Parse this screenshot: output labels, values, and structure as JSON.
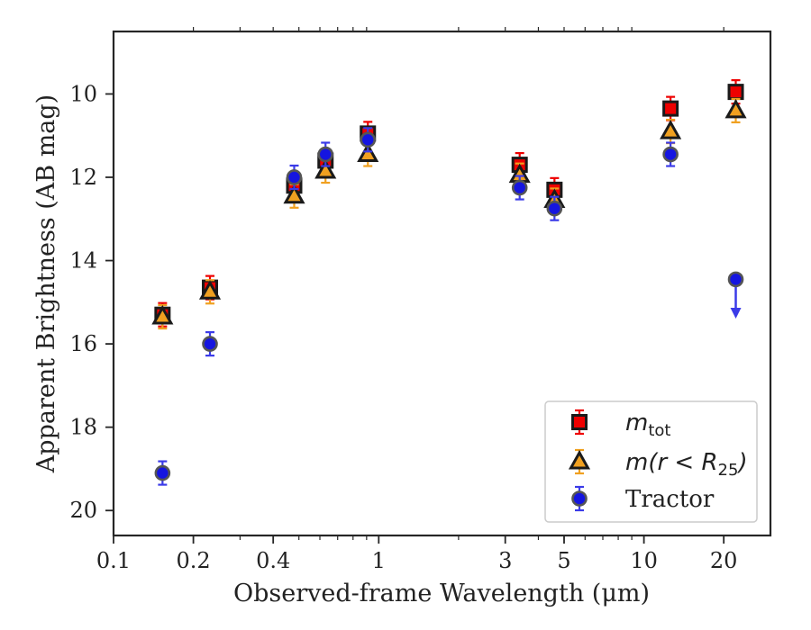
{
  "chart_data": {
    "type": "scatter",
    "title": "",
    "xlabel": "Observed-frame Wavelength (μm)",
    "ylabel": "Apparent Brightness (AB mag)",
    "xscale": "log",
    "xlim": [
      0.1,
      30
    ],
    "ylim": [
      20.6,
      8.5
    ],
    "y_inverted": true,
    "x_ticks": [
      0.1,
      0.2,
      0.4,
      1,
      3,
      5,
      10,
      20
    ],
    "x_tick_labels": [
      "0.1",
      "0.2",
      "0.4",
      "1",
      "3",
      "5",
      "10",
      "20"
    ],
    "y_ticks": [
      10,
      12,
      14,
      16,
      18,
      20
    ],
    "y_tick_labels": [
      "10",
      "12",
      "14",
      "16",
      "18",
      "20"
    ],
    "grid": false,
    "legend_position": "bottom-right",
    "series": [
      {
        "key": "mtot",
        "legend_main": "m",
        "legend_sub": "tot",
        "legend_rest": "",
        "marker": "square",
        "color": "#ee0000",
        "edge": "#1a1a1a",
        "points": [
          {
            "x": 0.153,
            "y": 15.3
          },
          {
            "x": 0.231,
            "y": 14.65
          },
          {
            "x": 0.48,
            "y": 12.2
          },
          {
            "x": 0.63,
            "y": 11.6
          },
          {
            "x": 0.91,
            "y": 10.95
          },
          {
            "x": 3.4,
            "y": 11.7
          },
          {
            "x": 4.6,
            "y": 12.3
          },
          {
            "x": 12.6,
            "y": 10.35
          },
          {
            "x": 22.2,
            "y": 9.95
          }
        ]
      },
      {
        "key": "mr25",
        "legend_main": "m(r < R",
        "legend_sub": "25",
        "legend_rest": ")",
        "marker": "triangle",
        "color": "#f0a020",
        "edge": "#1a1a1a",
        "points": [
          {
            "x": 0.153,
            "y": 15.35
          },
          {
            "x": 0.231,
            "y": 14.75
          },
          {
            "x": 0.48,
            "y": 12.45
          },
          {
            "x": 0.63,
            "y": 11.85
          },
          {
            "x": 0.91,
            "y": 11.45
          },
          {
            "x": 3.4,
            "y": 11.95
          },
          {
            "x": 4.6,
            "y": 12.55
          },
          {
            "x": 12.6,
            "y": 10.9
          },
          {
            "x": 22.2,
            "y": 10.4
          }
        ]
      },
      {
        "key": "tractor",
        "legend_main": "Tractor",
        "legend_sub": "",
        "legend_rest": "",
        "marker": "circle",
        "color": "#1515e0",
        "edge": "#555555",
        "points": [
          {
            "x": 0.153,
            "y": 19.1
          },
          {
            "x": 0.231,
            "y": 16.0
          },
          {
            "x": 0.48,
            "y": 12.0
          },
          {
            "x": 0.63,
            "y": 11.45
          },
          {
            "x": 0.91,
            "y": 11.1
          },
          {
            "x": 3.4,
            "y": 12.25
          },
          {
            "x": 4.6,
            "y": 12.75
          },
          {
            "x": 12.6,
            "y": 11.45
          },
          {
            "x": 22.2,
            "y": 14.45,
            "upper_limit": true,
            "limit_to": 15.35
          }
        ]
      }
    ]
  }
}
